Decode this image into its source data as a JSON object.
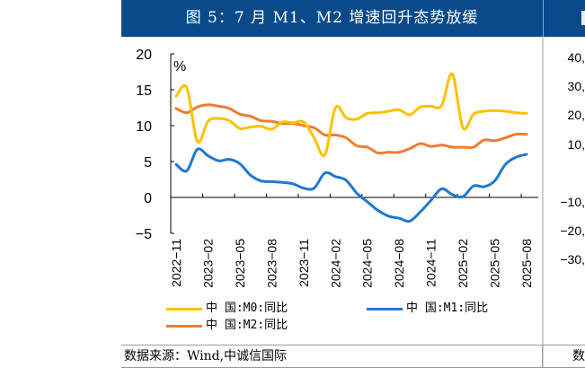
{
  "header": {
    "title": "图 5：7 月 M1、M2 增速回升态势放缓"
  },
  "right_panel": {
    "y_ticks": [
      "40,",
      "30,",
      "20,",
      "10,",
      "−10,",
      "−20,",
      "−30,"
    ],
    "source_fragment": "数"
  },
  "source": {
    "text": "数据来源：Wind,中诚信国际"
  },
  "colors": {
    "header_bg": "#0a4a8a",
    "m0": "#ffc000",
    "m1": "#1f78d1",
    "m2": "#ed7d31"
  },
  "chart_data": {
    "type": "line",
    "title": "图 5：7 月 M1、M2 增速回升态势放缓",
    "unit_label": "%",
    "xlabel": "",
    "ylabel": "%",
    "ylim": [
      -5,
      20
    ],
    "y_ticks": [
      20,
      15,
      10,
      5,
      0,
      -5
    ],
    "y_tick_labels": [
      "20",
      "15",
      "10",
      "5",
      "0",
      "−5"
    ],
    "x": [
      "2022-11",
      "2022-12",
      "2023-01",
      "2023-02",
      "2023-03",
      "2023-04",
      "2023-05",
      "2023-06",
      "2023-07",
      "2023-08",
      "2023-09",
      "2023-10",
      "2023-11",
      "2023-12",
      "2024-01",
      "2024-02",
      "2024-03",
      "2024-04",
      "2024-05",
      "2024-06",
      "2024-07",
      "2024-08",
      "2024-09",
      "2024-10",
      "2024-11",
      "2024-12",
      "2025-01",
      "2025-02",
      "2025-03",
      "2025-04",
      "2025-05",
      "2025-06",
      "2025-07",
      "2025-08"
    ],
    "x_tick_labels": [
      "2022−11",
      "2023−02",
      "2023−05",
      "2023−08",
      "2023−11",
      "2024−02",
      "2024−05",
      "2024−08",
      "2024−11",
      "2025−02",
      "2025−05",
      "2025−08"
    ],
    "x_tick_indices": [
      0,
      3,
      6,
      9,
      12,
      15,
      18,
      21,
      24,
      27,
      30,
      33
    ],
    "legend_position": "bottom",
    "grid": false,
    "series": [
      {
        "name": "中 国:M0:同比",
        "color": "#ffc000",
        "values": [
          14.1,
          15.3,
          7.8,
          10.6,
          11.0,
          10.7,
          9.6,
          9.8,
          9.9,
          9.5,
          10.5,
          10.4,
          10.5,
          8.3,
          5.9,
          12.5,
          11.1,
          10.9,
          11.7,
          11.8,
          12.0,
          12.2,
          11.5,
          12.6,
          12.7,
          12.8,
          17.2,
          9.7,
          11.6,
          12.0,
          12.1,
          12.0,
          11.8,
          11.7
        ]
      },
      {
        "name": "中 国:M1:同比",
        "color": "#1f78d1",
        "values": [
          4.6,
          3.7,
          6.7,
          5.8,
          5.1,
          5.3,
          4.7,
          3.1,
          2.3,
          2.2,
          2.1,
          1.9,
          1.3,
          1.3,
          3.4,
          2.9,
          2.4,
          0.6,
          -0.6,
          -1.8,
          -2.6,
          -2.9,
          -3.3,
          -2.0,
          -0.4,
          1.2,
          0.4,
          0.1,
          1.6,
          1.5,
          2.3,
          4.6,
          5.6,
          6.0
        ]
      },
      {
        "name": "中 国:M2:同比",
        "color": "#ed7d31",
        "values": [
          12.4,
          11.8,
          12.6,
          12.9,
          12.7,
          12.4,
          11.6,
          11.3,
          10.7,
          10.6,
          10.3,
          10.3,
          10.0,
          9.7,
          8.7,
          8.7,
          8.3,
          7.2,
          7.0,
          6.2,
          6.3,
          6.3,
          6.8,
          7.5,
          7.1,
          7.3,
          7.0,
          7.0,
          7.0,
          8.0,
          7.9,
          8.3,
          8.8,
          8.8
        ]
      }
    ]
  }
}
